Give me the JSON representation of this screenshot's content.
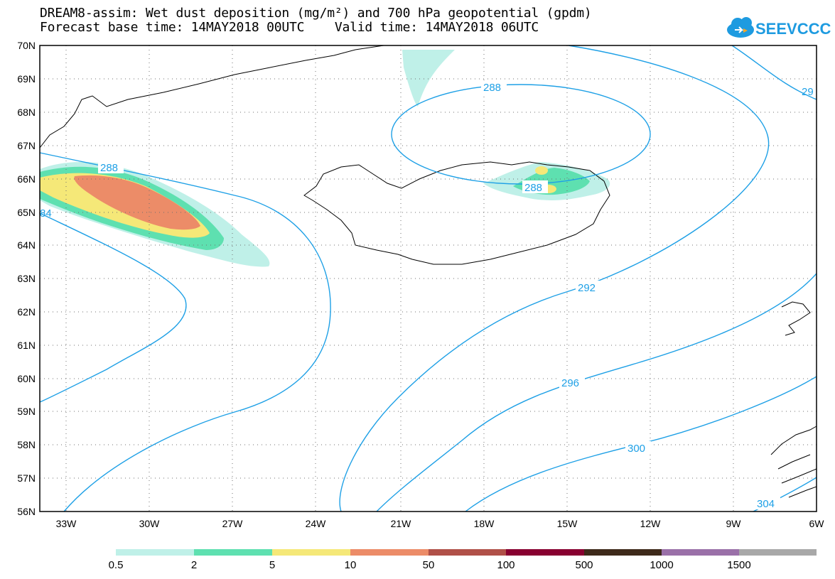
{
  "header": {
    "title_line1": "DREAM8-assim: Wet dust deposition (mg/m²) and 700 hPa geopotential (gpdm)",
    "title_line2": "Forecast base time: 14MAY2018 00UTC    Valid time: 14MAY2018 06UTC"
  },
  "logo": {
    "text": "SEEVCCC",
    "color": "#1e9be0"
  },
  "map": {
    "lat_labels": [
      "70N",
      "69N",
      "68N",
      "67N",
      "66N",
      "65N",
      "64N",
      "63N",
      "62N",
      "61N",
      "60N",
      "59N",
      "58N",
      "57N",
      "56N"
    ],
    "lon_labels": [
      "33W",
      "30W",
      "27W",
      "24W",
      "21W",
      "18W",
      "15W",
      "12W",
      "9W",
      "6W"
    ],
    "contour_color": "#1ea0e6",
    "contour_labels": [
      "288",
      "288",
      "288",
      "292",
      "296",
      "300",
      "304",
      "29",
      "84"
    ]
  },
  "colorbar": {
    "labels": [
      "0.5",
      "2",
      "5",
      "10",
      "50",
      "100",
      "500",
      "1000",
      "1500"
    ],
    "colors": [
      "#bff0e8",
      "#5ee0b0",
      "#f5e878",
      "#ec8c68",
      "#b05048",
      "#880030",
      "#3e2a1a",
      "#9a70a8",
      "#a8a8a8"
    ]
  }
}
